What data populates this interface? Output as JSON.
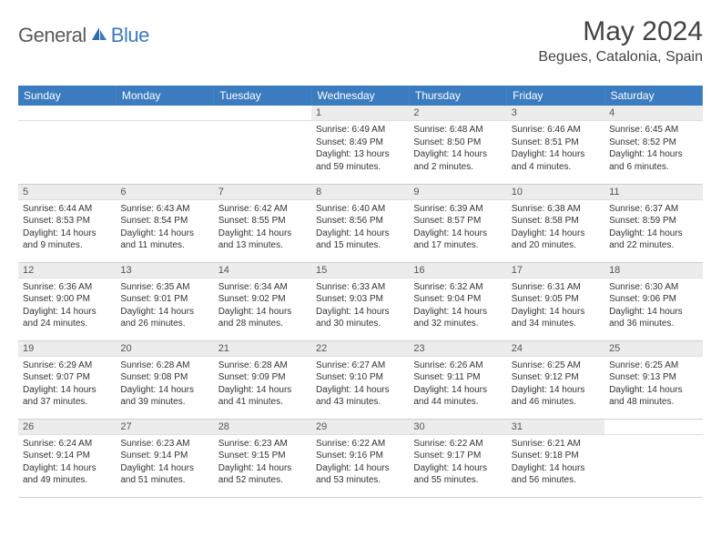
{
  "logo": {
    "text_general": "General",
    "text_blue": "Blue"
  },
  "header": {
    "month_title": "May 2024",
    "location": "Begues, Catalonia, Spain"
  },
  "colors": {
    "header_bg": "#3b7bbf",
    "header_text": "#ffffff",
    "daynum_bg": "#ececec",
    "text": "#333333",
    "logo_general": "#5a5a5a",
    "logo_blue": "#3b7bbf"
  },
  "weekdays": [
    "Sunday",
    "Monday",
    "Tuesday",
    "Wednesday",
    "Thursday",
    "Friday",
    "Saturday"
  ],
  "weeks": [
    [
      {
        "empty": true
      },
      {
        "empty": true
      },
      {
        "empty": true
      },
      {
        "day": "1",
        "sunrise": "Sunrise: 6:49 AM",
        "sunset": "Sunset: 8:49 PM",
        "daylight": "Daylight: 13 hours and 59 minutes."
      },
      {
        "day": "2",
        "sunrise": "Sunrise: 6:48 AM",
        "sunset": "Sunset: 8:50 PM",
        "daylight": "Daylight: 14 hours and 2 minutes."
      },
      {
        "day": "3",
        "sunrise": "Sunrise: 6:46 AM",
        "sunset": "Sunset: 8:51 PM",
        "daylight": "Daylight: 14 hours and 4 minutes."
      },
      {
        "day": "4",
        "sunrise": "Sunrise: 6:45 AM",
        "sunset": "Sunset: 8:52 PM",
        "daylight": "Daylight: 14 hours and 6 minutes."
      }
    ],
    [
      {
        "day": "5",
        "sunrise": "Sunrise: 6:44 AM",
        "sunset": "Sunset: 8:53 PM",
        "daylight": "Daylight: 14 hours and 9 minutes."
      },
      {
        "day": "6",
        "sunrise": "Sunrise: 6:43 AM",
        "sunset": "Sunset: 8:54 PM",
        "daylight": "Daylight: 14 hours and 11 minutes."
      },
      {
        "day": "7",
        "sunrise": "Sunrise: 6:42 AM",
        "sunset": "Sunset: 8:55 PM",
        "daylight": "Daylight: 14 hours and 13 minutes."
      },
      {
        "day": "8",
        "sunrise": "Sunrise: 6:40 AM",
        "sunset": "Sunset: 8:56 PM",
        "daylight": "Daylight: 14 hours and 15 minutes."
      },
      {
        "day": "9",
        "sunrise": "Sunrise: 6:39 AM",
        "sunset": "Sunset: 8:57 PM",
        "daylight": "Daylight: 14 hours and 17 minutes."
      },
      {
        "day": "10",
        "sunrise": "Sunrise: 6:38 AM",
        "sunset": "Sunset: 8:58 PM",
        "daylight": "Daylight: 14 hours and 20 minutes."
      },
      {
        "day": "11",
        "sunrise": "Sunrise: 6:37 AM",
        "sunset": "Sunset: 8:59 PM",
        "daylight": "Daylight: 14 hours and 22 minutes."
      }
    ],
    [
      {
        "day": "12",
        "sunrise": "Sunrise: 6:36 AM",
        "sunset": "Sunset: 9:00 PM",
        "daylight": "Daylight: 14 hours and 24 minutes."
      },
      {
        "day": "13",
        "sunrise": "Sunrise: 6:35 AM",
        "sunset": "Sunset: 9:01 PM",
        "daylight": "Daylight: 14 hours and 26 minutes."
      },
      {
        "day": "14",
        "sunrise": "Sunrise: 6:34 AM",
        "sunset": "Sunset: 9:02 PM",
        "daylight": "Daylight: 14 hours and 28 minutes."
      },
      {
        "day": "15",
        "sunrise": "Sunrise: 6:33 AM",
        "sunset": "Sunset: 9:03 PM",
        "daylight": "Daylight: 14 hours and 30 minutes."
      },
      {
        "day": "16",
        "sunrise": "Sunrise: 6:32 AM",
        "sunset": "Sunset: 9:04 PM",
        "daylight": "Daylight: 14 hours and 32 minutes."
      },
      {
        "day": "17",
        "sunrise": "Sunrise: 6:31 AM",
        "sunset": "Sunset: 9:05 PM",
        "daylight": "Daylight: 14 hours and 34 minutes."
      },
      {
        "day": "18",
        "sunrise": "Sunrise: 6:30 AM",
        "sunset": "Sunset: 9:06 PM",
        "daylight": "Daylight: 14 hours and 36 minutes."
      }
    ],
    [
      {
        "day": "19",
        "sunrise": "Sunrise: 6:29 AM",
        "sunset": "Sunset: 9:07 PM",
        "daylight": "Daylight: 14 hours and 37 minutes."
      },
      {
        "day": "20",
        "sunrise": "Sunrise: 6:28 AM",
        "sunset": "Sunset: 9:08 PM",
        "daylight": "Daylight: 14 hours and 39 minutes."
      },
      {
        "day": "21",
        "sunrise": "Sunrise: 6:28 AM",
        "sunset": "Sunset: 9:09 PM",
        "daylight": "Daylight: 14 hours and 41 minutes."
      },
      {
        "day": "22",
        "sunrise": "Sunrise: 6:27 AM",
        "sunset": "Sunset: 9:10 PM",
        "daylight": "Daylight: 14 hours and 43 minutes."
      },
      {
        "day": "23",
        "sunrise": "Sunrise: 6:26 AM",
        "sunset": "Sunset: 9:11 PM",
        "daylight": "Daylight: 14 hours and 44 minutes."
      },
      {
        "day": "24",
        "sunrise": "Sunrise: 6:25 AM",
        "sunset": "Sunset: 9:12 PM",
        "daylight": "Daylight: 14 hours and 46 minutes."
      },
      {
        "day": "25",
        "sunrise": "Sunrise: 6:25 AM",
        "sunset": "Sunset: 9:13 PM",
        "daylight": "Daylight: 14 hours and 48 minutes."
      }
    ],
    [
      {
        "day": "26",
        "sunrise": "Sunrise: 6:24 AM",
        "sunset": "Sunset: 9:14 PM",
        "daylight": "Daylight: 14 hours and 49 minutes."
      },
      {
        "day": "27",
        "sunrise": "Sunrise: 6:23 AM",
        "sunset": "Sunset: 9:14 PM",
        "daylight": "Daylight: 14 hours and 51 minutes."
      },
      {
        "day": "28",
        "sunrise": "Sunrise: 6:23 AM",
        "sunset": "Sunset: 9:15 PM",
        "daylight": "Daylight: 14 hours and 52 minutes."
      },
      {
        "day": "29",
        "sunrise": "Sunrise: 6:22 AM",
        "sunset": "Sunset: 9:16 PM",
        "daylight": "Daylight: 14 hours and 53 minutes."
      },
      {
        "day": "30",
        "sunrise": "Sunrise: 6:22 AM",
        "sunset": "Sunset: 9:17 PM",
        "daylight": "Daylight: 14 hours and 55 minutes."
      },
      {
        "day": "31",
        "sunrise": "Sunrise: 6:21 AM",
        "sunset": "Sunset: 9:18 PM",
        "daylight": "Daylight: 14 hours and 56 minutes."
      },
      {
        "empty": true
      }
    ]
  ]
}
